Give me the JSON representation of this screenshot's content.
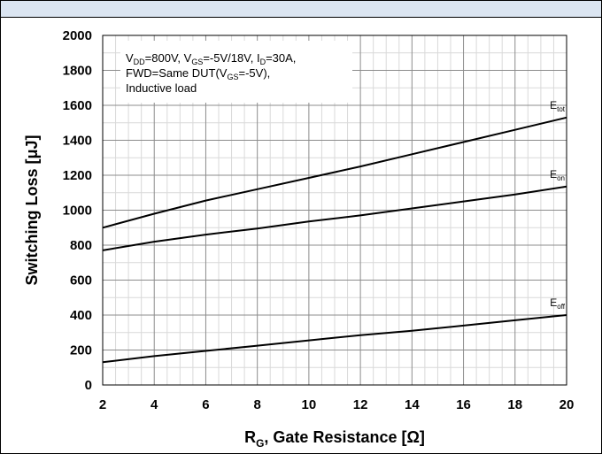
{
  "chart_data": {
    "type": "line",
    "title": "",
    "xlabel": {
      "main": "R",
      "sub": "G",
      "rest": ", Gate Resistance [Ω]"
    },
    "ylabel": "Switching Loss [μJ]",
    "xlim": [
      2,
      20
    ],
    "ylim": [
      0,
      2000
    ],
    "x_ticks": [
      2,
      4,
      6,
      8,
      10,
      12,
      14,
      16,
      18,
      20
    ],
    "y_ticks": [
      0,
      200,
      400,
      600,
      800,
      1000,
      1200,
      1400,
      1600,
      1800,
      2000
    ],
    "grid": true,
    "legend": "none",
    "annotation": {
      "line1": [
        {
          "t": "V",
          "sub": false
        },
        {
          "t": "DD",
          "sub": true
        },
        {
          "t": "=800V, V",
          "sub": false
        },
        {
          "t": "GS",
          "sub": true
        },
        {
          "t": "=-5V/18V, I",
          "sub": false
        },
        {
          "t": "D",
          "sub": true
        },
        {
          "t": "=30A,",
          "sub": false
        }
      ],
      "line2": [
        {
          "t": "FWD=Same DUT(V",
          "sub": false
        },
        {
          "t": "GS",
          "sub": true
        },
        {
          "t": "=-5V),",
          "sub": false
        }
      ],
      "line3": [
        {
          "t": "Inductive load",
          "sub": false
        }
      ]
    },
    "series": [
      {
        "name": "E",
        "name_sub": "tot",
        "x": [
          2,
          4,
          6,
          8,
          10,
          12,
          14,
          16,
          18,
          20
        ],
        "values": [
          900,
          980,
          1055,
          1120,
          1185,
          1250,
          1320,
          1390,
          1460,
          1530
        ]
      },
      {
        "name": "E",
        "name_sub": "on",
        "x": [
          2,
          4,
          6,
          8,
          10,
          12,
          14,
          16,
          18,
          20
        ],
        "values": [
          770,
          820,
          860,
          895,
          935,
          970,
          1010,
          1050,
          1090,
          1135
        ]
      },
      {
        "name": "E",
        "name_sub": "off",
        "x": [
          2,
          4,
          6,
          8,
          10,
          12,
          14,
          16,
          18,
          20
        ],
        "values": [
          130,
          165,
          195,
          225,
          255,
          285,
          310,
          340,
          370,
          400
        ]
      }
    ]
  }
}
